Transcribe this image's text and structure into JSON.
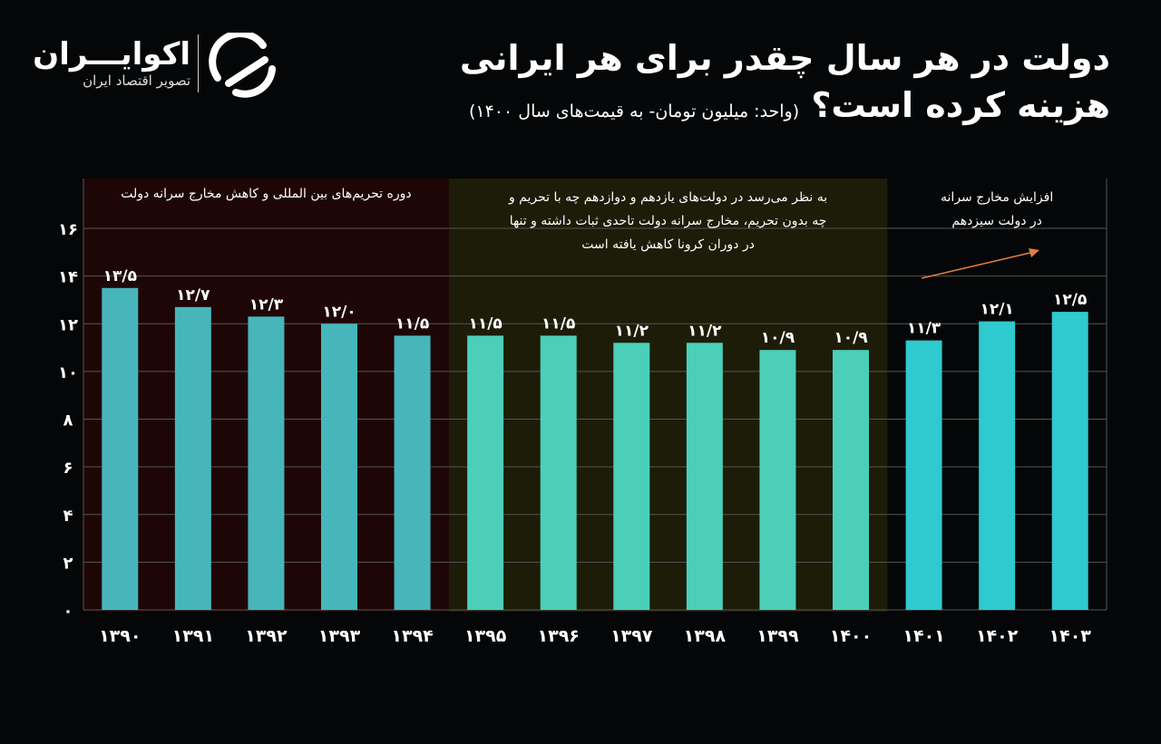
{
  "header": {
    "title_line1": "دولت در هر سال چقدر برای هر ایرانی",
    "title_line2": "هزینه کرده است؟",
    "unit_note": "(واحد: میلیون تومان- به قیمت‌های سال ۱۴۰۰)"
  },
  "logo": {
    "name": "اکوایـــران",
    "tagline": "تصویر اقتصاد ایران"
  },
  "chart_data": {
    "type": "bar",
    "title": "دولت در هر سال چقدر برای هر ایرانی هزینه کرده است؟",
    "ylabel": "",
    "xlabel": "",
    "ylim": [
      0,
      16
    ],
    "yticks": [
      0,
      2,
      4,
      6,
      8,
      10,
      12,
      14,
      16
    ],
    "ytick_labels": [
      "۰",
      "۲",
      "۴",
      "۶",
      "۸",
      "۱۰",
      "۱۲",
      "۱۴",
      "۱۶"
    ],
    "grid": true,
    "categories": [
      "۱۳۹۰",
      "۱۳۹۱",
      "۱۳۹۲",
      "۱۳۹۳",
      "۱۳۹۴",
      "۱۳۹۵",
      "۱۳۹۶",
      "۱۳۹۷",
      "۱۳۹۸",
      "۱۳۹۹",
      "۱۴۰۰",
      "۱۴۰۱",
      "۱۴۰۲",
      "۱۴۰۳"
    ],
    "values": [
      13.5,
      12.7,
      12.3,
      12.0,
      11.5,
      11.5,
      11.5,
      11.2,
      11.2,
      10.9,
      10.9,
      11.3,
      12.1,
      12.5
    ],
    "data_labels": [
      "۱۳/۵",
      "۱۲/۷",
      "۱۲/۳",
      "۱۲/۰",
      "۱۱/۵",
      "۱۱/۵",
      "۱۱/۵",
      "۱۱/۲",
      "۱۱/۲",
      "۱۰/۹",
      "۱۰/۹",
      "۱۱/۳",
      "۱۲/۱",
      "۱۲/۵"
    ],
    "periods": [
      {
        "from": 0,
        "to": 4,
        "label": "دوره تحریم‌های بین المللی و کاهش مخارج سرانه دولت",
        "bg": "#1f0606",
        "bar_color": "#47b6bb"
      },
      {
        "from": 5,
        "to": 10,
        "label": "به نظر می‌رسد در دولت‌های یازدهم و دوازدهم چه با تحریم و|چه بدون تحریم، مخارج سرانه دولت تاحدی ثبات داشته و تنها|در دوران کرونا کاهش یافته است",
        "bg": "#1d1c08",
        "bar_color": "#4ccfb9"
      },
      {
        "from": 11,
        "to": 13,
        "label": "افزایش مخارج سرانه|در دولت سیزدهم",
        "bg": "none",
        "bar_color": "#2fc9d0"
      }
    ],
    "arrow_color": "#e08040"
  }
}
